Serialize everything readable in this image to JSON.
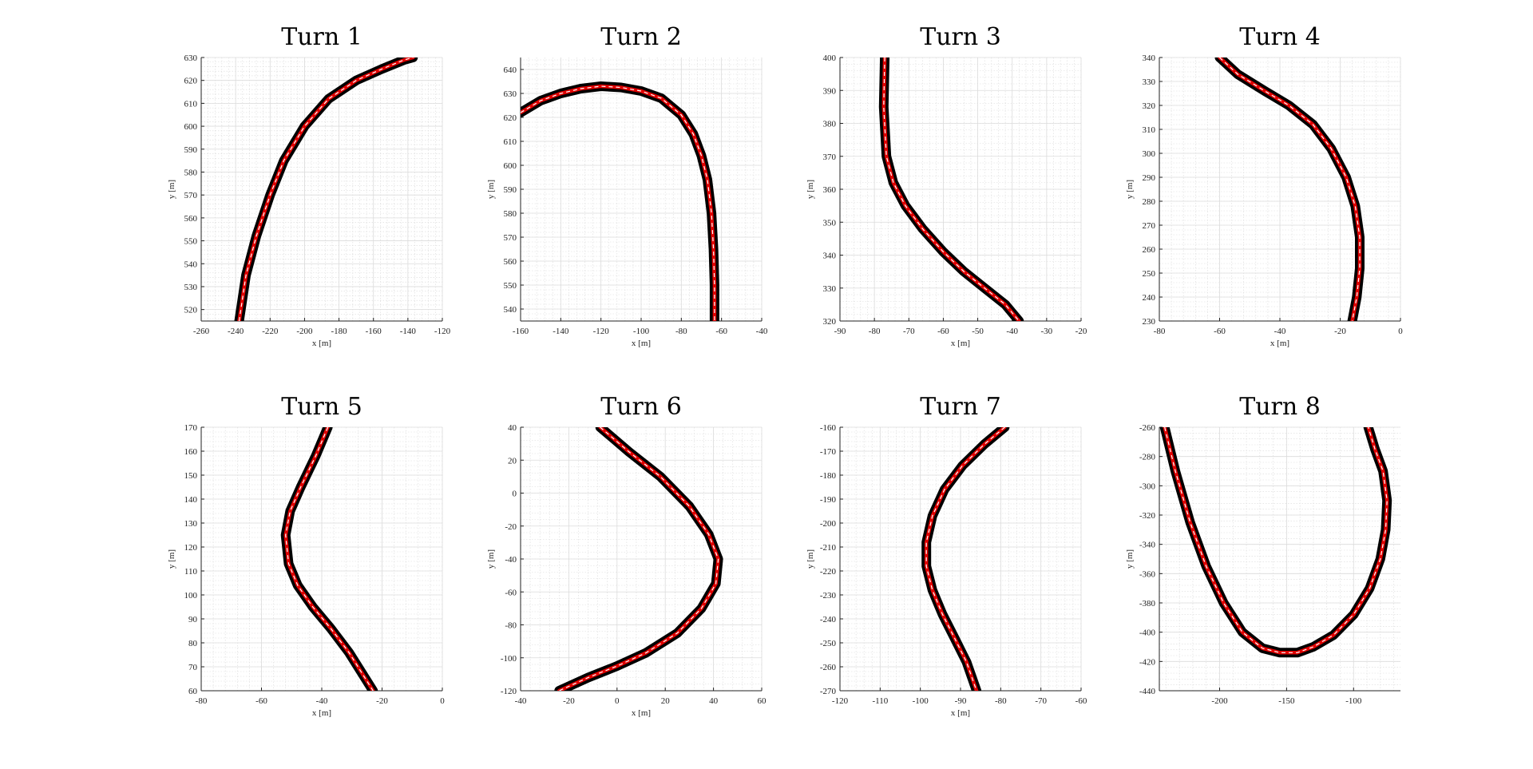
{
  "chart_data": [
    {
      "type": "line",
      "title": "Turn 1",
      "xlabel": "x [m]",
      "ylabel": "y [m]",
      "xlim": [
        -260,
        -120
      ],
      "ylim": [
        515,
        630
      ],
      "xticks": [
        "-260",
        "-240",
        "-220",
        "-200",
        "-180",
        "-160",
        "-140",
        "-120"
      ],
      "yticks": [
        "520",
        "530",
        "540",
        "550",
        "560",
        "570",
        "580",
        "590",
        "600",
        "610",
        "620",
        "630"
      ],
      "grid": true,
      "x": [
        -238,
        -234,
        -228,
        -220,
        -212,
        -200,
        -186,
        -170,
        -155,
        -142,
        -137
      ],
      "y": [
        515,
        535,
        552,
        570,
        585,
        600,
        612,
        620,
        625,
        629,
        630
      ]
    },
    {
      "type": "line",
      "title": "Turn 2",
      "xlabel": "x [m]",
      "ylabel": "y [m]",
      "xlim": [
        -160,
        -40
      ],
      "ylim": [
        535,
        645
      ],
      "xticks": [
        "-160",
        "-140",
        "-120",
        "-100",
        "-80",
        "-60",
        "-40"
      ],
      "yticks": [
        "540",
        "550",
        "560",
        "570",
        "580",
        "590",
        "600",
        "610",
        "620",
        "630",
        "640"
      ],
      "grid": true,
      "x": [
        -160,
        -150,
        -140,
        -130,
        -120,
        -110,
        -100,
        -90,
        -80,
        -74,
        -70,
        -67,
        -65,
        -64,
        -63.5,
        -63.5
      ],
      "y": [
        622,
        627,
        630,
        632,
        633,
        632.5,
        631,
        628,
        621,
        613,
        604,
        594,
        580,
        565,
        550,
        535
      ]
    },
    {
      "type": "line",
      "title": "Turn 3",
      "xlabel": "x [m]",
      "ylabel": "y [m]",
      "xlim": [
        -90,
        -20
      ],
      "ylim": [
        320,
        400
      ],
      "xticks": [
        "-90",
        "-80",
        "-70",
        "-60",
        "-50",
        "-40",
        "-30",
        "-20"
      ],
      "yticks": [
        "320",
        "330",
        "340",
        "350",
        "360",
        "370",
        "380",
        "390",
        "400"
      ],
      "grid": true,
      "x": [
        -77,
        -77.3,
        -76.5,
        -74.5,
        -71,
        -66,
        -60,
        -54,
        -48,
        -42,
        -38
      ],
      "y": [
        400,
        385,
        370,
        362,
        355,
        348,
        341,
        335,
        330,
        325,
        320
      ]
    },
    {
      "type": "line",
      "title": "Turn 4",
      "xlabel": "x [m]",
      "ylabel": "y [m]",
      "xlim": [
        -80,
        0
      ],
      "ylim": [
        230,
        340
      ],
      "xticks": [
        "-80",
        "-60",
        "-40",
        "-20",
        "0"
      ],
      "yticks": [
        "230",
        "240",
        "250",
        "260",
        "270",
        "280",
        "290",
        "300",
        "310",
        "320",
        "330",
        "340"
      ],
      "grid": true,
      "x": [
        -60,
        -54,
        -45,
        -37,
        -29,
        -23,
        -18,
        -15,
        -13.5,
        -13.5,
        -14.5,
        -16
      ],
      "y": [
        340,
        333,
        326,
        320,
        312,
        302,
        290,
        278,
        265,
        252,
        240,
        230
      ]
    },
    {
      "type": "line",
      "title": "Turn 5",
      "xlabel": "x [m]",
      "ylabel": "y [m]",
      "xlim": [
        -80,
        0
      ],
      "ylim": [
        60,
        170
      ],
      "xticks": [
        "-80",
        "-60",
        "-40",
        "-20",
        "0"
      ],
      "yticks": [
        "60",
        "70",
        "80",
        "90",
        "100",
        "110",
        "120",
        "130",
        "140",
        "150",
        "160",
        "170"
      ],
      "grid": true,
      "x": [
        -38,
        -42,
        -47,
        -50.5,
        -52,
        -51,
        -48,
        -43,
        -37,
        -31,
        -23
      ],
      "y": [
        170,
        158,
        145,
        135,
        125,
        113,
        104,
        95,
        86,
        76,
        60
      ]
    },
    {
      "type": "line",
      "title": "Turn 6",
      "xlabel": "x [m]",
      "ylabel": "y [m]",
      "xlim": [
        -40,
        60
      ],
      "ylim": [
        -120,
        40
      ],
      "xticks": [
        "-40",
        "-20",
        "0",
        "20",
        "40",
        "60"
      ],
      "yticks": [
        "-120",
        "-100",
        "-80",
        "-60",
        "-40",
        "-20",
        "0",
        "20",
        "40"
      ],
      "grid": true,
      "x": [
        -7,
        5,
        18,
        30,
        38,
        42,
        41,
        35,
        25,
        12,
        0,
        -12,
        -24
      ],
      "y": [
        40,
        25,
        10,
        -8,
        -25,
        -40,
        -55,
        -70,
        -85,
        -97,
        -105,
        -112,
        -120
      ]
    },
    {
      "type": "line",
      "title": "Turn 7",
      "xlabel": "x [m]",
      "ylabel": "y [m]",
      "xlim": [
        -120,
        -60
      ],
      "ylim": [
        -270,
        -160
      ],
      "xticks": [
        "-120",
        "-110",
        "-100",
        "-90",
        "-80",
        "-70",
        "-60"
      ],
      "yticks": [
        "-270",
        "-260",
        "-250",
        "-240",
        "-230",
        "-220",
        "-210",
        "-200",
        "-190",
        "-180",
        "-170",
        "-160"
      ],
      "grid": true,
      "x": [
        -79,
        -84,
        -89.5,
        -94,
        -97,
        -98.5,
        -98.5,
        -97,
        -94.5,
        -91.5,
        -88.5,
        -86
      ],
      "y": [
        -160,
        -167,
        -176,
        -186,
        -197,
        -208,
        -218,
        -228,
        -238,
        -248,
        -258,
        -270
      ]
    },
    {
      "type": "line",
      "title": "Turn 8",
      "xlabel": "",
      "ylabel": "y [m]",
      "xlim": [
        -245,
        -65
      ],
      "ylim": [
        -440,
        -260
      ],
      "xticks": [
        "-200",
        "-150",
        "-100"
      ],
      "yticks": [
        "-440",
        "-420",
        "-400",
        "-380",
        "-360",
        "-340",
        "-320",
        "-300",
        "-280",
        "-260"
      ],
      "grid": true,
      "x": [
        -241,
        -233,
        -222,
        -210,
        -197,
        -183,
        -168,
        -155,
        -142,
        -130,
        -115,
        -100,
        -88,
        -80,
        -76,
        -75,
        -78,
        -84,
        -89
      ],
      "y": [
        -260,
        -290,
        -325,
        -355,
        -380,
        -400,
        -411,
        -414,
        -414,
        -410,
        -402,
        -388,
        -370,
        -350,
        -330,
        -310,
        -290,
        -275,
        -260
      ]
    }
  ]
}
